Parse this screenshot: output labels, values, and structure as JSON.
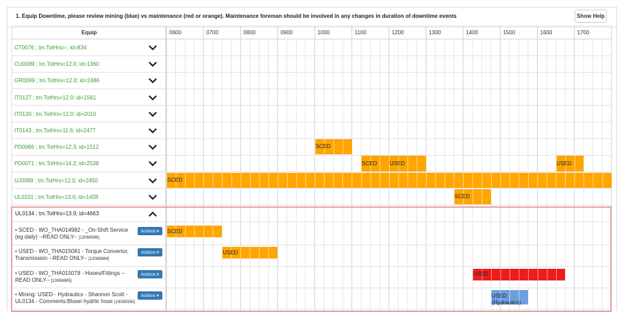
{
  "header": {
    "title": "1. Equip Downtime, please review mining (blue) vs maintenance (red or orange). Maintenance foreman should be involved in any changes in duration of downtime events",
    "help_label": "Show Help"
  },
  "table": {
    "equip_header": "Equip",
    "hours": [
      "0600",
      "0700",
      "0800",
      "0900",
      "1000",
      "1100",
      "1200",
      "1300",
      "1400",
      "1500",
      "1600",
      "1700"
    ]
  },
  "equipment": [
    {
      "label": "CT0076 ; tm.TotHrs=-; id=834",
      "expanded": false,
      "events": []
    },
    {
      "label": "CU0089 ; tm.TotHrs=12.0; id=1360",
      "expanded": false,
      "events": []
    },
    {
      "label": "GR0099 ; tm.TotHrs=12.0; id=2486",
      "expanded": false,
      "events": []
    },
    {
      "label": "IT0127 ; tm.TotHrs=12.0; id=1561",
      "expanded": false,
      "events": []
    },
    {
      "label": "IT0130 ; tm.TotHrs=12.0; id=2010",
      "expanded": false,
      "events": []
    },
    {
      "label": "IT0143 ; tm.TotHrs=11.6; id=2477",
      "expanded": false,
      "events": []
    },
    {
      "label": "PD0066 ; tm.TotHrs=12.3; id=1512",
      "expanded": false,
      "events": [
        {
          "start": 10.0,
          "end": 11.0,
          "type": "maintenance",
          "label": "SCED"
        }
      ]
    },
    {
      "label": "PD0071 ; tm.TotHrs=14.2; id=2538",
      "expanded": false,
      "events": [
        {
          "start": 11.25,
          "end": 12.0,
          "type": "maintenance",
          "label": "SCED"
        },
        {
          "start": 12.0,
          "end": 13.0,
          "type": "maintenance",
          "label": "USED"
        },
        {
          "start": 16.5,
          "end": 17.25,
          "type": "maintenance",
          "label": "USED"
        }
      ]
    },
    {
      "label": "UJ0089 ; tm.TotHrs=12.0; id=2450",
      "expanded": false,
      "events": [
        {
          "start": 6.0,
          "end": 18.0,
          "type": "maintenance",
          "label": "SCED"
        }
      ]
    },
    {
      "label": "UL0101 ; tm.TotHrs=13.0; id=1428",
      "expanded": false,
      "events": [
        {
          "start": 13.75,
          "end": 14.75,
          "type": "maintenance",
          "label": "SCED"
        }
      ]
    },
    {
      "label": "UL0134 ; tm.TotHrs=13.9; id=4663",
      "expanded": true,
      "events": []
    }
  ],
  "details": [
    {
      "text": "• SCED - WO_THA014982 - _On-Shift Service (eg daily) --READ ONLY--",
      "ref": "[13068996]",
      "action_label": "Actions",
      "event": {
        "start": 6.0,
        "end": 7.5,
        "type": "maintenance",
        "label": "SCED"
      }
    },
    {
      "text": "• USED - WO_THA015081 - Torque Convertor, Transmission --READ ONLY--",
      "ref": "[13068884]",
      "action_label": "Actions",
      "event": {
        "start": 7.5,
        "end": 9.0,
        "type": "maintenance",
        "label": "USED"
      }
    },
    {
      "text": "• USED - WO_THA015078 - Hoses/Fittings --READ ONLY--",
      "ref": "[13068885]",
      "action_label": "Actions",
      "event": {
        "start": 14.25,
        "end": 16.75,
        "type": "breakdown",
        "label": "USED"
      }
    },
    {
      "text": "• Mining: USED - Hydraulics - Shannon Scott - UL0134 - Comments:Blown hydrlic hose",
      "ref": "[19085956]",
      "action_label": "Actions",
      "event": {
        "start": 14.75,
        "end": 15.75,
        "type": "mining",
        "label": "USED (Hydraulics)"
      }
    }
  ],
  "colors": {
    "maintenance": "#ffa500",
    "breakdown": "#ee1c1c",
    "mining": "#6c9ee0",
    "equip_text": "#3a9a3a",
    "selection_border": "#e8a0a0",
    "action_button": "#337ab7"
  },
  "icons": {
    "collapse": "chevron-down-icon",
    "expand": "chevron-up-icon",
    "caret": "caret-down-icon"
  }
}
